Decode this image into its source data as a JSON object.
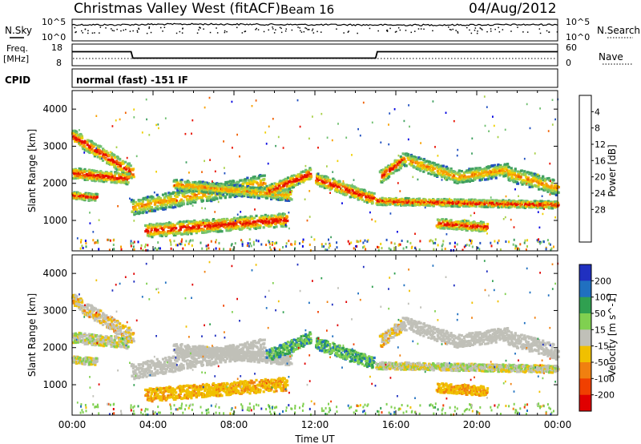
{
  "header": {
    "station": "Christmas Valley West (fitACF)",
    "beam": "Beam 16",
    "date": "04/Aug/2012"
  },
  "top_panels": {
    "nsky_label": "N.Sky",
    "nsky_ticks": [
      "10^5",
      "10^0"
    ],
    "nsearch_label": "N.Search",
    "nsearch_ticks": [
      "10^5",
      "10^0"
    ],
    "freq_label_1": "Freq.",
    "freq_label_2": "[MHz]",
    "freq_ticks": [
      "18",
      "8"
    ],
    "nave_label": "Nave",
    "nave_ticks": [
      "60",
      "0"
    ],
    "cpid_label": "CPID",
    "cpid_text": "normal (fast) -151 IF"
  },
  "colors": {
    "power": [
      "#0000e0",
      "#2050c0",
      "#40a060",
      "#70c070",
      "#a8d048",
      "#f0d000",
      "#f8a000",
      "#f06000",
      "#e81000"
    ],
    "velocity": [
      "#2030c0",
      "#2070c0",
      "#30a050",
      "#80d050",
      "#c0c0b8",
      "#f0c000",
      "#f08010",
      "#f04000",
      "#e00000"
    ],
    "ground_scatter": "#c0c0b8"
  },
  "chart_data": [
    {
      "type": "line",
      "panel": "noise",
      "ylabel": "N.Sky",
      "series": [
        {
          "name": "N.Sky",
          "x": [
            "00:00",
            "02:00",
            "04:00",
            "06:00",
            "08:00",
            "10:00",
            "12:00",
            "14:00",
            "16:00",
            "18:00",
            "20:00",
            "22:00",
            "24:00"
          ],
          "values": [
            10000,
            9000,
            12000,
            14000,
            13000,
            11000,
            9500,
            9000,
            8000,
            8500,
            9000,
            10000,
            11000
          ]
        }
      ]
    },
    {
      "type": "line",
      "panel": "frequency",
      "ylabel": "Freq. [MHz]",
      "ylim": [
        8,
        18
      ],
      "series": [
        {
          "name": "Freq.",
          "x": [
            "00:00",
            "02:55",
            "03:00",
            "15:00",
            "15:05",
            "24:00"
          ],
          "values": [
            14.5,
            14.5,
            11.5,
            11.5,
            14.5,
            14.5
          ]
        }
      ]
    },
    {
      "type": "heatmap",
      "panel": "power",
      "xlabel": "",
      "ylabel": "Slant Range [km]",
      "ylim": [
        180,
        4500
      ],
      "yticks": [
        1000,
        2000,
        3000,
        4000
      ],
      "colorbar_label": "Power [dB]",
      "colorbar_ticks": [
        4,
        8,
        12,
        16,
        20,
        24,
        28
      ],
      "colorbar_range": [
        0,
        30
      ]
    },
    {
      "type": "heatmap",
      "panel": "velocity",
      "xlabel": "Time UT",
      "ylabel": "Slant Range [km]",
      "ylim": [
        180,
        4500
      ],
      "yticks": [
        1000,
        2000,
        3000,
        4000
      ],
      "xticks": [
        "00:00",
        "04:00",
        "08:00",
        "12:00",
        "16:00",
        "20:00",
        "00:00"
      ],
      "colorbar_label": "Velocity [m s^-1]",
      "colorbar_ticks": [
        200,
        100,
        50,
        15,
        -15,
        -50,
        -100,
        -200
      ]
    }
  ]
}
